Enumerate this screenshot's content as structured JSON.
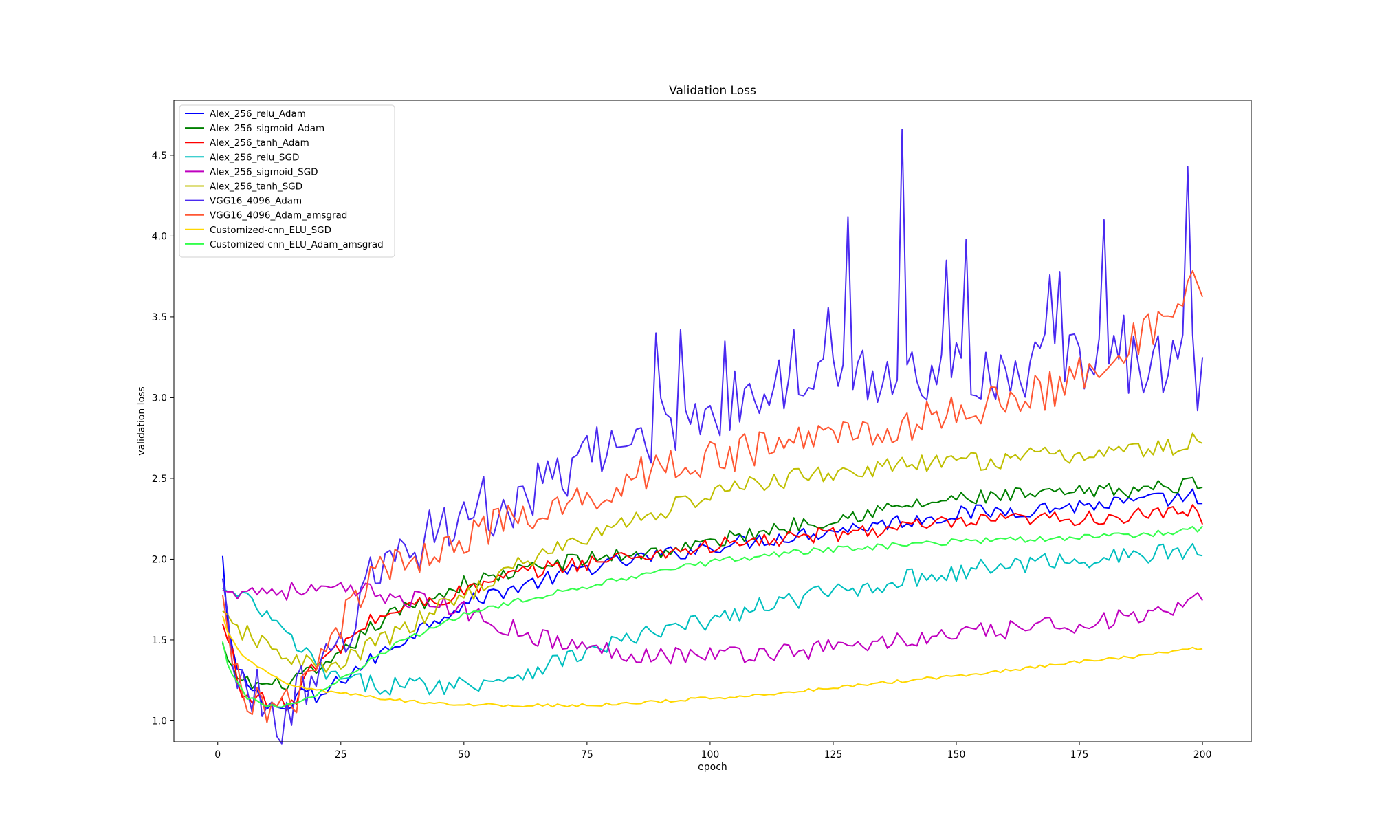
{
  "chart_data": {
    "type": "line",
    "title": "Validation Loss",
    "xlabel": "epoch",
    "ylabel": "validation loss",
    "xlim": [
      -8.9,
      209.9
    ],
    "ylim": [
      0.87,
      4.84
    ],
    "xticks": [
      0,
      25,
      50,
      75,
      100,
      125,
      150,
      175,
      200
    ],
    "yticks": [
      1.0,
      1.5,
      2.0,
      2.5,
      3.0,
      3.5,
      4.0,
      4.5
    ],
    "ytick_labels": [
      "1.0",
      "1.5",
      "2.0",
      "2.5",
      "3.0",
      "3.5",
      "4.0",
      "4.5"
    ],
    "grid": false,
    "legend_position": "upper-left",
    "series": [
      {
        "name": "Alex_256_relu_Adam",
        "color": "#0000ff",
        "key_x": [
          1,
          2,
          3,
          4,
          5,
          8,
          10,
          12,
          13,
          14,
          16,
          18,
          20,
          22,
          25,
          27,
          30,
          35,
          40,
          45,
          50,
          55,
          60,
          65,
          70,
          75,
          80,
          85,
          90,
          95,
          100,
          110,
          120,
          130,
          140,
          150,
          160,
          170,
          180,
          190,
          196,
          198,
          200
        ],
        "key_y": [
          2.02,
          1.6,
          1.45,
          1.3,
          1.28,
          1.16,
          1.12,
          1.08,
          1.08,
          1.05,
          1.15,
          1.18,
          1.12,
          1.18,
          1.25,
          1.3,
          1.35,
          1.45,
          1.55,
          1.65,
          1.72,
          1.78,
          1.82,
          1.86,
          1.9,
          1.95,
          1.97,
          2.0,
          2.02,
          2.05,
          2.08,
          2.12,
          2.16,
          2.2,
          2.24,
          2.28,
          2.3,
          2.32,
          2.34,
          2.36,
          2.38,
          2.4,
          2.3
        ],
        "noise": 0.05
      },
      {
        "name": "Alex_256_sigmoid_Adam",
        "color": "#008000",
        "key_x": [
          1,
          2,
          3,
          5,
          8,
          10,
          12,
          15,
          18,
          20,
          22,
          25,
          30,
          35,
          40,
          45,
          50,
          55,
          60,
          65,
          70,
          75,
          80,
          90,
          100,
          110,
          120,
          130,
          140,
          150,
          160,
          170,
          180,
          190,
          195,
          198,
          200
        ],
        "key_y": [
          1.48,
          1.38,
          1.32,
          1.25,
          1.22,
          1.22,
          1.22,
          1.25,
          1.28,
          1.3,
          1.32,
          1.4,
          1.55,
          1.65,
          1.72,
          1.78,
          1.85,
          1.88,
          1.92,
          1.95,
          1.98,
          2.0,
          2.02,
          2.05,
          2.1,
          2.17,
          2.23,
          2.28,
          2.33,
          2.37,
          2.39,
          2.4,
          2.42,
          2.44,
          2.45,
          2.47,
          2.49
        ],
        "noise": 0.05
      },
      {
        "name": "Alex_256_tanh_Adam",
        "color": "#ff0000",
        "key_x": [
          1,
          2,
          3,
          4,
          5,
          8,
          10,
          12,
          14,
          16,
          18,
          20,
          22,
          25,
          30,
          35,
          40,
          45,
          50,
          55,
          60,
          65,
          70,
          80,
          90,
          100,
          110,
          120,
          130,
          140,
          150,
          160,
          170,
          180,
          190,
          198,
          200
        ],
        "key_y": [
          1.6,
          1.5,
          1.45,
          1.2,
          1.18,
          1.15,
          1.12,
          1.1,
          1.08,
          1.15,
          1.3,
          1.32,
          1.4,
          1.45,
          1.6,
          1.67,
          1.72,
          1.75,
          1.8,
          1.85,
          1.9,
          1.93,
          1.96,
          2.0,
          2.04,
          2.08,
          2.11,
          2.14,
          2.17,
          2.2,
          2.22,
          2.24,
          2.25,
          2.26,
          2.27,
          2.3,
          2.25
        ],
        "noise": 0.05
      },
      {
        "name": "Alex_256_relu_SGD",
        "color": "#00bfbf",
        "key_x": [
          1,
          3,
          5,
          8,
          10,
          12,
          15,
          18,
          20,
          22,
          25,
          30,
          35,
          40,
          45,
          50,
          55,
          60,
          65,
          70,
          75,
          80,
          90,
          100,
          110,
          120,
          130,
          140,
          150,
          160,
          170,
          180,
          190,
          196,
          200
        ],
        "key_y": [
          1.82,
          1.79,
          1.76,
          1.7,
          1.65,
          1.58,
          1.5,
          1.4,
          1.35,
          1.3,
          1.25,
          1.23,
          1.22,
          1.22,
          1.22,
          1.23,
          1.25,
          1.28,
          1.33,
          1.38,
          1.42,
          1.48,
          1.55,
          1.62,
          1.7,
          1.77,
          1.82,
          1.88,
          1.92,
          1.96,
          1.99,
          2.01,
          2.03,
          2.05,
          2.05
        ],
        "noise": 0.06
      },
      {
        "name": "Alex_256_sigmoid_SGD",
        "color": "#bf00bf",
        "key_x": [
          1,
          10,
          20,
          30,
          35,
          40,
          45,
          50,
          55,
          60,
          65,
          70,
          75,
          80,
          90,
          100,
          110,
          120,
          130,
          140,
          150,
          160,
          170,
          180,
          190,
          196,
          200
        ],
        "key_y": [
          1.81,
          1.808,
          1.804,
          1.795,
          1.78,
          1.75,
          1.72,
          1.68,
          1.62,
          1.57,
          1.52,
          1.48,
          1.45,
          1.43,
          1.41,
          1.41,
          1.42,
          1.44,
          1.47,
          1.5,
          1.53,
          1.56,
          1.59,
          1.62,
          1.65,
          1.68,
          1.76
        ],
        "noise": 0.06
      },
      {
        "name": "Alex_256_tanh_SGD",
        "color": "#bfbf00",
        "key_x": [
          1,
          3,
          5,
          8,
          10,
          12,
          15,
          18,
          20,
          22,
          25,
          30,
          35,
          40,
          45,
          50,
          55,
          60,
          65,
          70,
          75,
          80,
          90,
          100,
          110,
          120,
          130,
          140,
          150,
          160,
          170,
          180,
          190,
          196,
          198,
          200
        ],
        "key_y": [
          1.68,
          1.6,
          1.55,
          1.5,
          1.45,
          1.42,
          1.4,
          1.36,
          1.33,
          1.32,
          1.34,
          1.45,
          1.52,
          1.6,
          1.7,
          1.78,
          1.86,
          1.94,
          2.02,
          2.08,
          2.13,
          2.2,
          2.3,
          2.4,
          2.47,
          2.52,
          2.55,
          2.58,
          2.6,
          2.62,
          2.64,
          2.66,
          2.68,
          2.7,
          2.73,
          2.72
        ],
        "noise": 0.06
      },
      {
        "name": "VGG16_4096_Adam",
        "color": "#4a2af0",
        "key_x": [
          1,
          3,
          5,
          8,
          10,
          12,
          14,
          16,
          20,
          22,
          25,
          28,
          30,
          35,
          40,
          45,
          50,
          55,
          60,
          65,
          70,
          75,
          80,
          85,
          90,
          95,
          100,
          110,
          120,
          130,
          140,
          150,
          160,
          170,
          180,
          190,
          200
        ],
        "key_y": [
          1.88,
          1.4,
          1.22,
          1.12,
          1.1,
          1.06,
          1.05,
          1.12,
          1.2,
          1.3,
          1.45,
          1.72,
          1.8,
          2.0,
          2.1,
          2.2,
          2.28,
          2.32,
          2.35,
          2.4,
          2.5,
          2.6,
          2.68,
          2.75,
          2.82,
          2.88,
          2.92,
          3.02,
          3.08,
          3.12,
          3.15,
          3.18,
          3.18,
          3.2,
          3.22,
          3.22,
          3.22
        ],
        "noise": 0.2,
        "spikes": [
          [
            89,
            3.4
          ],
          [
            94,
            3.42
          ],
          [
            103,
            3.35
          ],
          [
            117,
            3.42
          ],
          [
            124,
            3.56
          ],
          [
            128,
            4.12
          ],
          [
            139,
            4.66
          ],
          [
            148,
            3.85
          ],
          [
            152,
            3.98
          ],
          [
            169,
            3.76
          ],
          [
            171,
            3.78
          ],
          [
            180,
            4.1
          ],
          [
            184,
            3.51
          ],
          [
            197,
            4.43
          ],
          [
            199,
            2.92
          ]
        ]
      },
      {
        "name": "VGG16_4096_Adam_amsgrad",
        "color": "#ff5733",
        "key_x": [
          1,
          3,
          5,
          8,
          10,
          12,
          14,
          16,
          20,
          22,
          25,
          26,
          28,
          30,
          32,
          35,
          40,
          45,
          50,
          55,
          60,
          65,
          70,
          75,
          80,
          85,
          90,
          100,
          110,
          120,
          130,
          140,
          150,
          160,
          170,
          180,
          190,
          195,
          198,
          200
        ],
        "key_y": [
          1.78,
          1.35,
          1.2,
          1.12,
          1.1,
          1.08,
          1.08,
          1.15,
          1.3,
          1.42,
          1.6,
          1.85,
          1.8,
          1.75,
          1.95,
          1.95,
          2.0,
          2.08,
          2.15,
          2.2,
          2.22,
          2.25,
          2.3,
          2.38,
          2.45,
          2.52,
          2.58,
          2.62,
          2.68,
          2.75,
          2.8,
          2.82,
          2.92,
          2.98,
          3.05,
          3.25,
          3.42,
          3.5,
          3.68,
          3.58
        ],
        "noise": 0.12
      },
      {
        "name": "Customized-cnn_ELU_SGD",
        "color": "#ffd700",
        "key_x": [
          1,
          2,
          4,
          6,
          8,
          10,
          12,
          15,
          20,
          25,
          30,
          35,
          40,
          50,
          60,
          70,
          80,
          90,
          100,
          110,
          120,
          130,
          140,
          150,
          160,
          170,
          180,
          190,
          196,
          200
        ],
        "key_y": [
          1.65,
          1.55,
          1.45,
          1.38,
          1.33,
          1.3,
          1.26,
          1.22,
          1.19,
          1.17,
          1.15,
          1.13,
          1.12,
          1.1,
          1.095,
          1.095,
          1.1,
          1.12,
          1.14,
          1.16,
          1.19,
          1.22,
          1.25,
          1.28,
          1.31,
          1.35,
          1.38,
          1.41,
          1.45,
          1.44
        ],
        "noise": 0.01
      },
      {
        "name": "Customized-cnn_ELU_Adam_amsgrad",
        "color": "#33ff4b",
        "key_x": [
          1,
          2,
          4,
          6,
          8,
          10,
          12,
          15,
          20,
          25,
          30,
          35,
          40,
          45,
          50,
          60,
          70,
          80,
          90,
          100,
          110,
          120,
          130,
          140,
          150,
          160,
          170,
          180,
          190,
          200
        ],
        "key_y": [
          1.49,
          1.35,
          1.22,
          1.15,
          1.12,
          1.1,
          1.09,
          1.1,
          1.15,
          1.25,
          1.35,
          1.45,
          1.52,
          1.6,
          1.66,
          1.73,
          1.8,
          1.87,
          1.93,
          1.98,
          2.02,
          2.05,
          2.07,
          2.09,
          2.11,
          2.12,
          2.13,
          2.14,
          2.16,
          2.19
        ],
        "noise": 0.02
      }
    ]
  }
}
